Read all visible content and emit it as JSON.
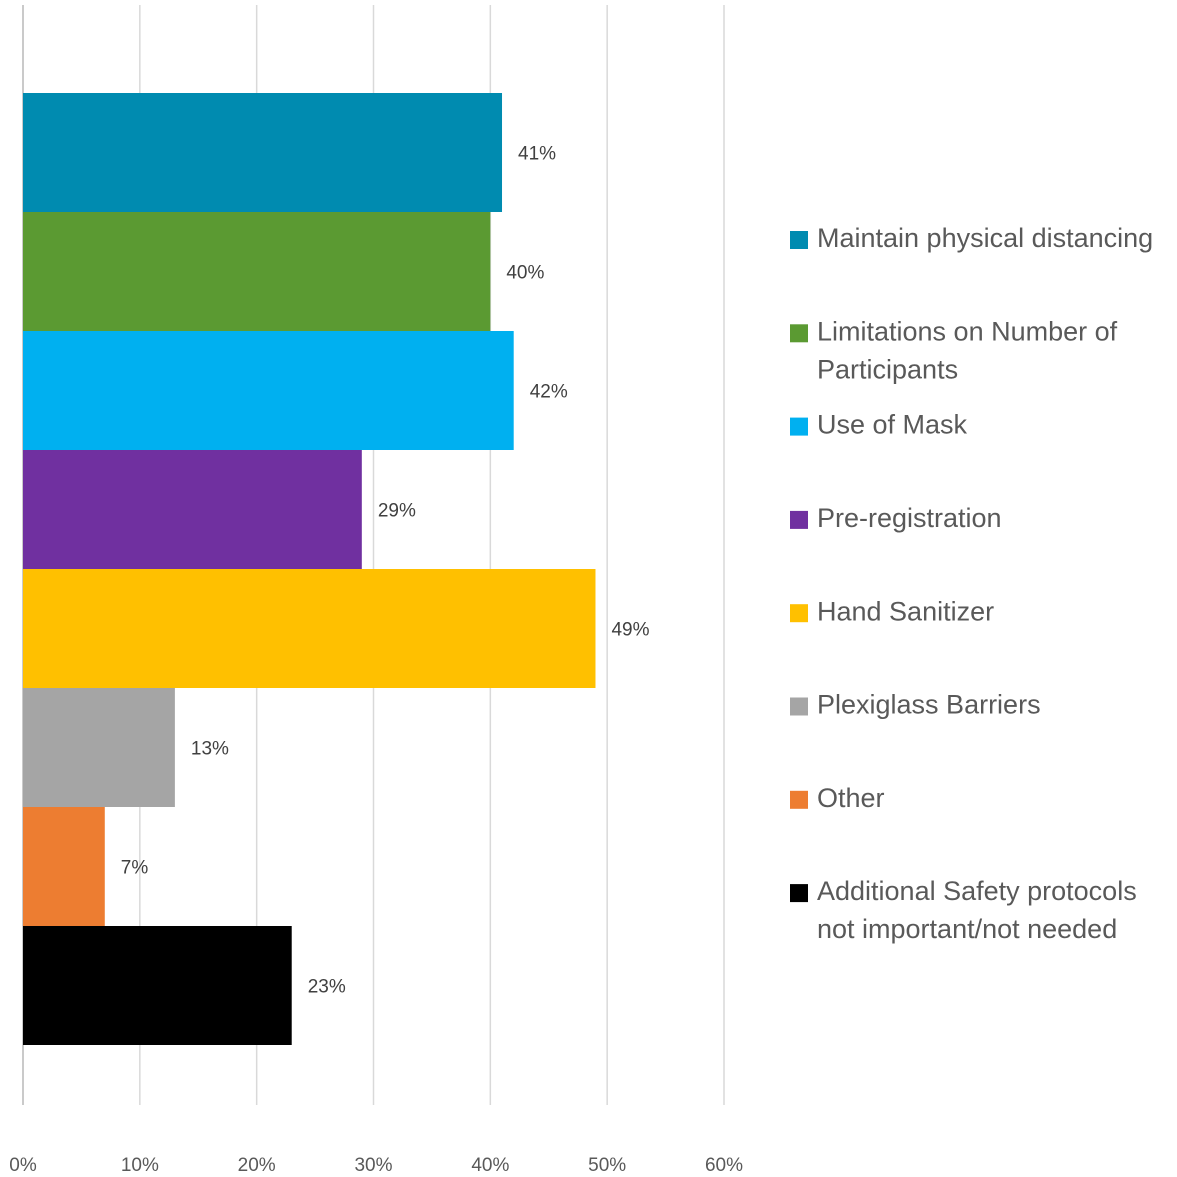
{
  "chart_data": {
    "type": "bar",
    "orientation": "horizontal",
    "categories": [
      null
    ],
    "series": [
      {
        "name": "Maintain physical distancing",
        "color": "#008bb0",
        "values": [
          41
        ],
        "value_labels": [
          "41%"
        ]
      },
      {
        "name": "Limitations on Number of Participants",
        "color": "#5b9a32",
        "values": [
          40
        ],
        "value_labels": [
          "40%"
        ]
      },
      {
        "name": "Use of Mask",
        "color": "#00b0f0",
        "values": [
          42
        ],
        "value_labels": [
          "42%"
        ]
      },
      {
        "name": "Pre-registration",
        "color": "#7030a0",
        "values": [
          29
        ],
        "value_labels": [
          "29%"
        ]
      },
      {
        "name": "Hand Sanitizer",
        "color": "#ffc000",
        "values": [
          49
        ],
        "value_labels": [
          "49%"
        ]
      },
      {
        "name": "Plexiglass Barriers",
        "color": "#a5a5a5",
        "values": [
          13
        ],
        "value_labels": [
          "13%"
        ]
      },
      {
        "name": "Other",
        "color": "#ed7d31",
        "values": [
          7
        ],
        "value_labels": [
          "7%"
        ]
      },
      {
        "name": "Additional Safety protocols not important/not needed",
        "color": "#000000",
        "values": [
          23
        ],
        "value_labels": [
          "23%"
        ]
      }
    ],
    "xlim": [
      0,
      60
    ],
    "xticks": [
      {
        "value": 0,
        "label": "0%"
      },
      {
        "value": 10,
        "label": "10%"
      },
      {
        "value": 20,
        "label": "20%"
      },
      {
        "value": 30,
        "label": "30%"
      },
      {
        "value": 40,
        "label": "40%"
      },
      {
        "value": 50,
        "label": "50%"
      },
      {
        "value": 60,
        "label": "60%"
      }
    ],
    "grid": true,
    "legend": "right"
  }
}
